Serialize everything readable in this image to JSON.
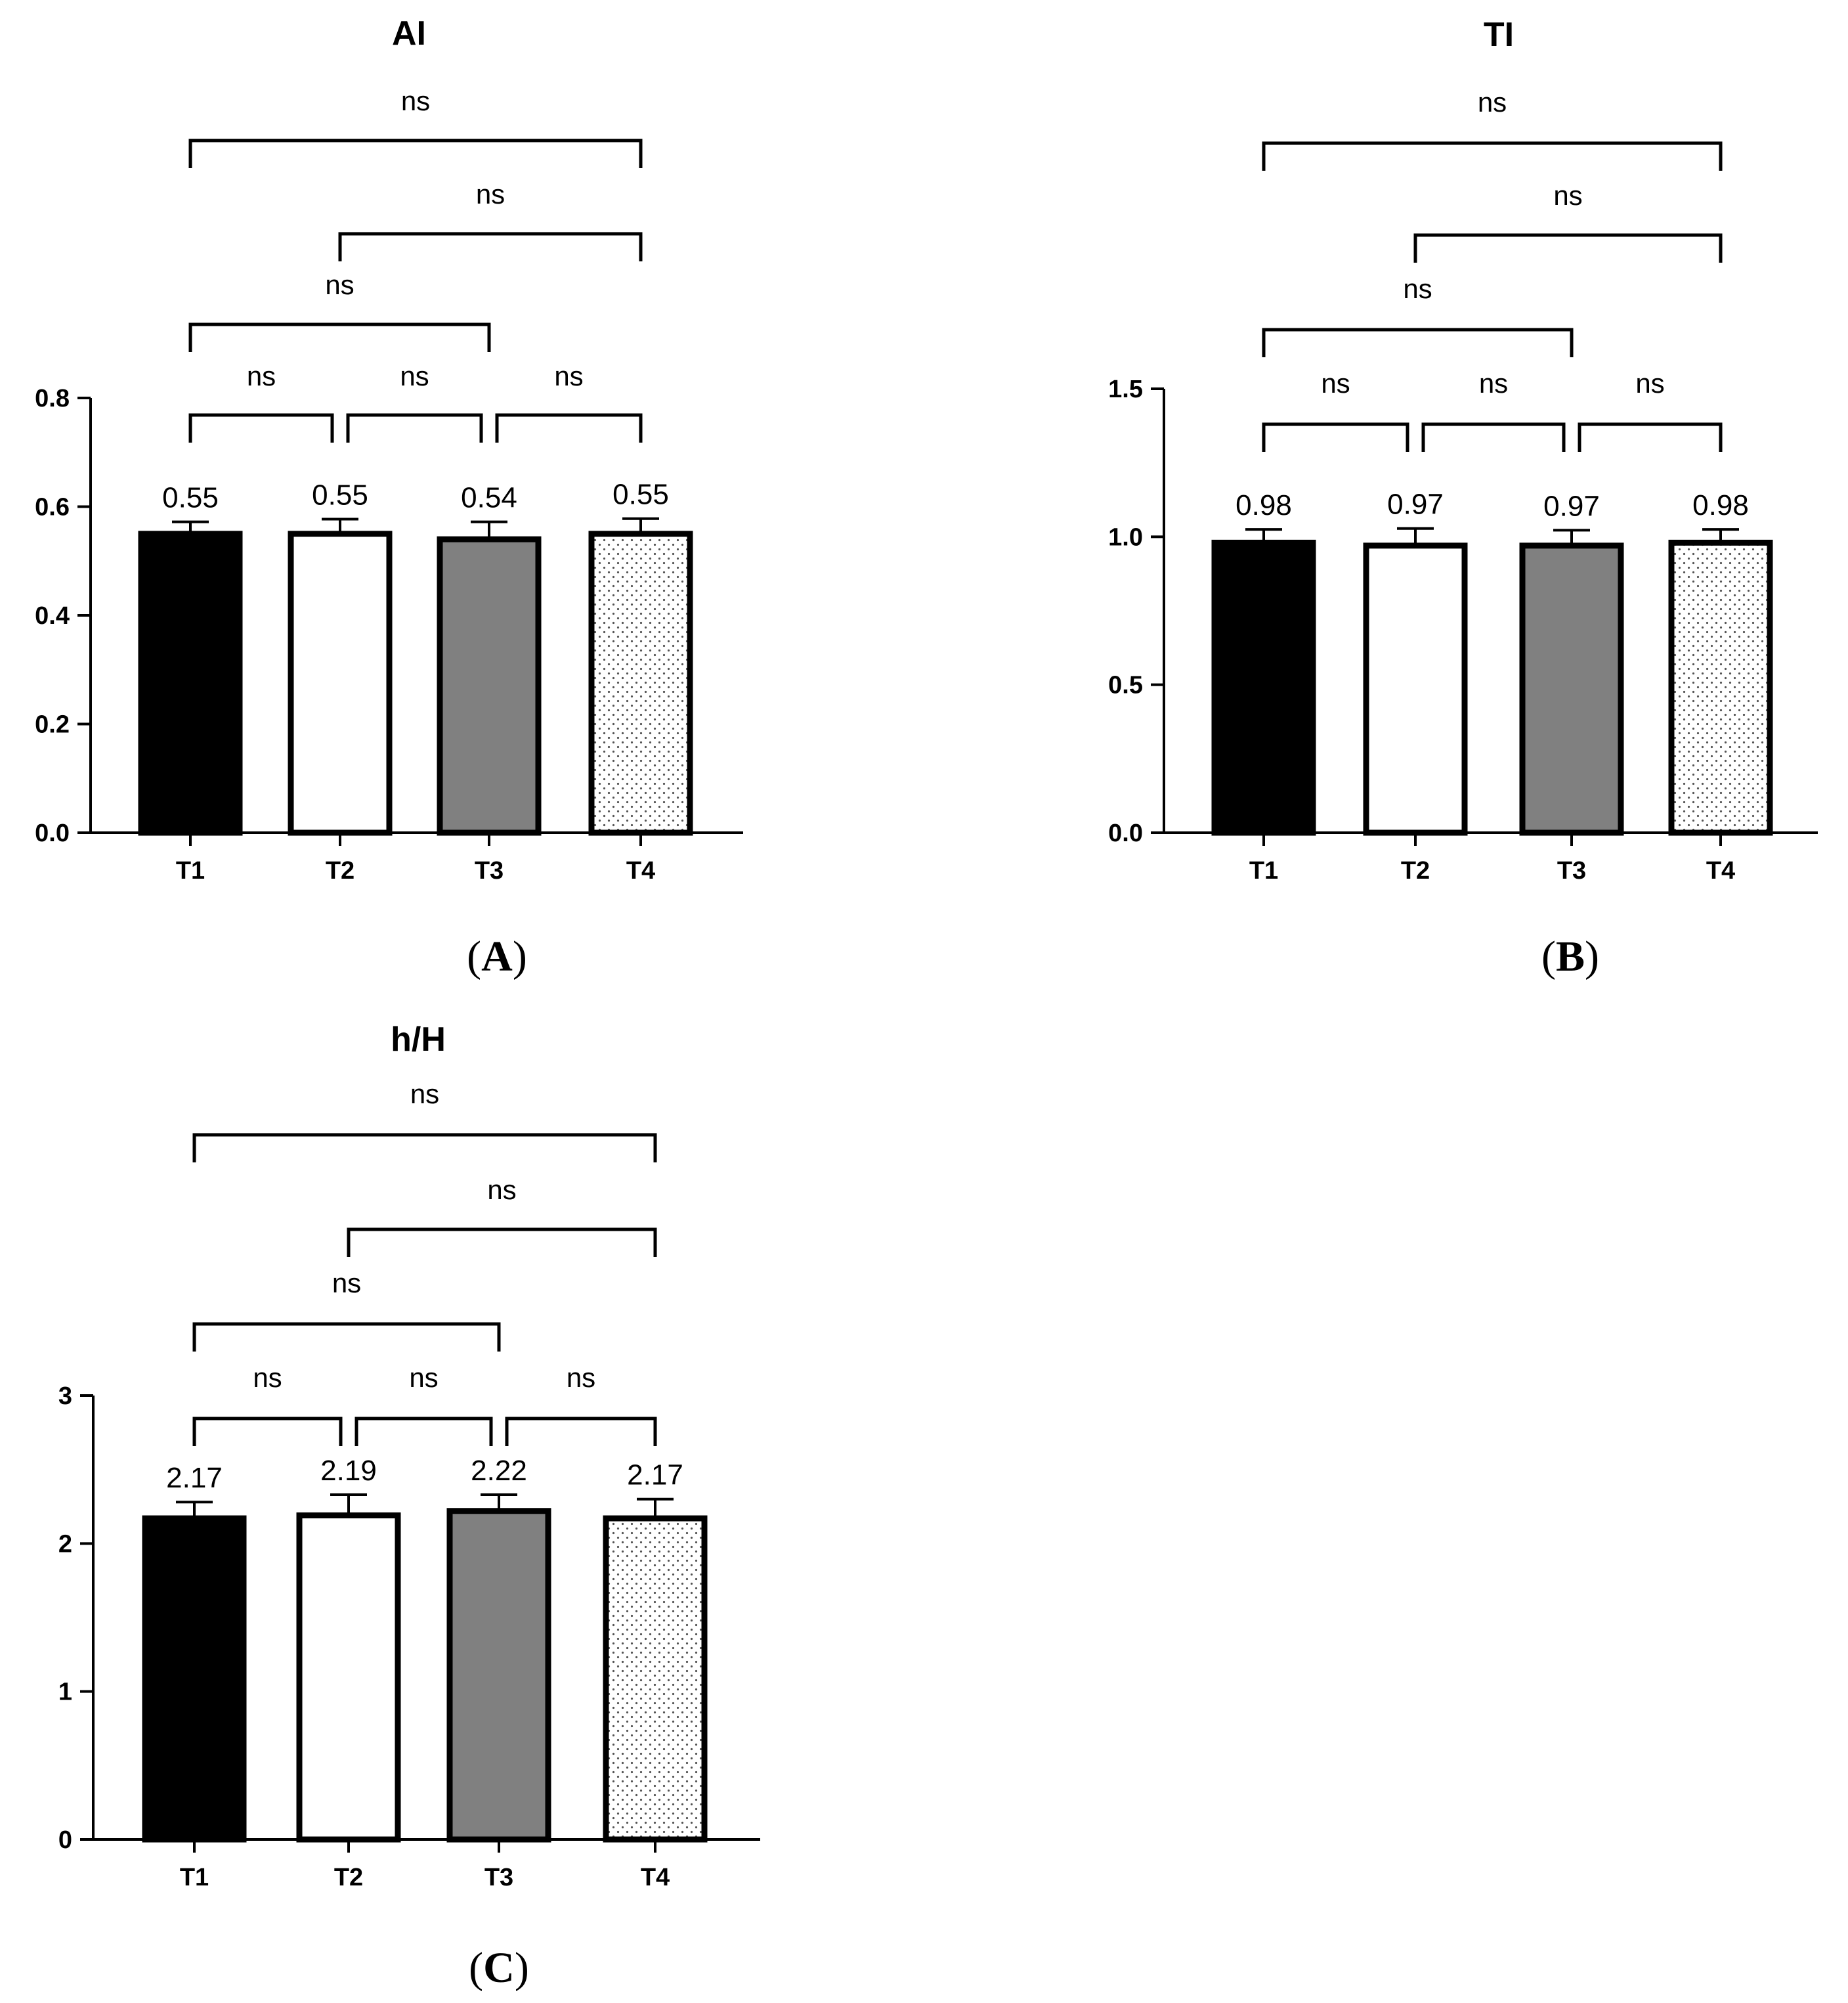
{
  "chart_data": [
    {
      "type": "bar",
      "panel": "A",
      "title": "AI",
      "categories": [
        "T1",
        "T2",
        "T3",
        "T4"
      ],
      "values": [
        0.55,
        0.55,
        0.54,
        0.55
      ],
      "value_labels": [
        "0.55",
        "0.55",
        "0.54",
        "0.55"
      ],
      "error_upper": [
        0.572,
        0.577,
        0.572,
        0.578
      ],
      "ylim": [
        0,
        0.8
      ],
      "yticks": [
        0,
        0.2,
        0.4,
        0.6,
        0.8
      ],
      "ytick_labels": [
        "0.0",
        "0.2",
        "0.4",
        "0.6",
        "0.8"
      ],
      "xlabel": "",
      "ylabel": "",
      "bar_styles": [
        "black",
        "white",
        "gray",
        "dotted"
      ],
      "comparisons": [
        {
          "from": 0,
          "to": 1,
          "label": "ns"
        },
        {
          "from": 1,
          "to": 2,
          "label": "ns"
        },
        {
          "from": 2,
          "to": 3,
          "label": "ns"
        },
        {
          "from": 0,
          "to": 2,
          "label": "ns"
        },
        {
          "from": 1,
          "to": 3,
          "label": "ns"
        },
        {
          "from": 0,
          "to": 3,
          "label": "ns"
        }
      ]
    },
    {
      "type": "bar",
      "panel": "B",
      "title": "TI",
      "categories": [
        "T1",
        "T2",
        "T3",
        "T4"
      ],
      "values": [
        0.98,
        0.97,
        0.97,
        0.98
      ],
      "value_labels": [
        "0.98",
        "0.97",
        "0.97",
        "0.98"
      ],
      "error_upper": [
        1.025,
        1.028,
        1.022,
        1.025
      ],
      "ylim": [
        0,
        1.5
      ],
      "yticks": [
        0,
        0.5,
        1.0,
        1.5
      ],
      "ytick_labels": [
        "0.0",
        "0.5",
        "1.0",
        "1.5"
      ],
      "xlabel": "",
      "ylabel": "",
      "bar_styles": [
        "black",
        "white",
        "gray",
        "dotted"
      ],
      "comparisons": [
        {
          "from": 0,
          "to": 1,
          "label": "ns"
        },
        {
          "from": 1,
          "to": 2,
          "label": "ns"
        },
        {
          "from": 2,
          "to": 3,
          "label": "ns"
        },
        {
          "from": 0,
          "to": 2,
          "label": "ns"
        },
        {
          "from": 1,
          "to": 3,
          "label": "ns"
        },
        {
          "from": 0,
          "to": 3,
          "label": "ns"
        }
      ]
    },
    {
      "type": "bar",
      "panel": "C",
      "title": "h/H",
      "categories": [
        "T1",
        "T2",
        "T3",
        "T4"
      ],
      "values": [
        2.17,
        2.19,
        2.22,
        2.17
      ],
      "value_labels": [
        "2.17",
        "2.19",
        "2.22",
        "2.17"
      ],
      "error_upper": [
        2.28,
        2.33,
        2.33,
        2.3
      ],
      "ylim": [
        0,
        3
      ],
      "yticks": [
        0,
        1,
        2,
        3
      ],
      "ytick_labels": [
        "0",
        "1",
        "2",
        "3"
      ],
      "xlabel": "",
      "ylabel": "",
      "bar_styles": [
        "black",
        "white",
        "gray",
        "dotted"
      ],
      "comparisons": [
        {
          "from": 0,
          "to": 1,
          "label": "ns"
        },
        {
          "from": 1,
          "to": 2,
          "label": "ns"
        },
        {
          "from": 2,
          "to": 3,
          "label": "ns"
        },
        {
          "from": 0,
          "to": 2,
          "label": "ns"
        },
        {
          "from": 1,
          "to": 3,
          "label": "ns"
        },
        {
          "from": 0,
          "to": 3,
          "label": "ns"
        }
      ]
    }
  ],
  "colors": {
    "black_bar": "#000000",
    "gray_bar": "#808080",
    "white_bar": "#ffffff",
    "axis": "#000000"
  }
}
